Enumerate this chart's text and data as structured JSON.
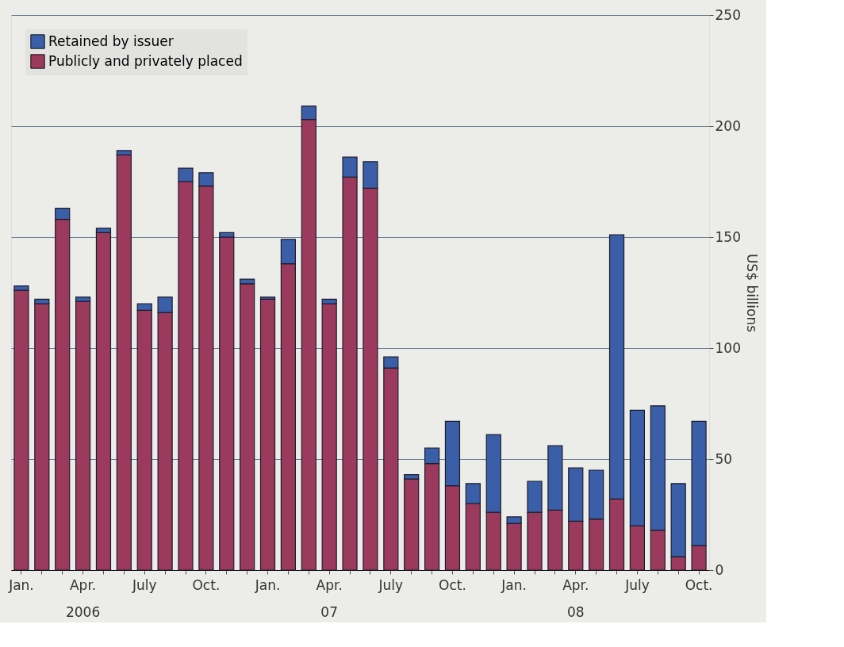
{
  "chart_data": {
    "type": "bar",
    "stacked": true,
    "ylabel": "US$ billions",
    "categories": [
      "Jan.",
      null,
      null,
      "Apr.\n2006",
      null,
      null,
      "July",
      null,
      null,
      "Oct.",
      null,
      null,
      "Jan.",
      null,
      null,
      "Apr.\n07",
      null,
      null,
      "July",
      null,
      null,
      "Oct.",
      null,
      null,
      "Jan.",
      null,
      null,
      "Apr.\n08",
      null,
      null,
      "July",
      null,
      null,
      "Oct."
    ],
    "series": [
      {
        "name": "Publicly and privately placed",
        "color": "#9b3a5c",
        "values": [
          126,
          120,
          158,
          121,
          152,
          187,
          117,
          116,
          175,
          173,
          150,
          129,
          122,
          138,
          203,
          120,
          177,
          172,
          91,
          41,
          48,
          38,
          30,
          26,
          21,
          26,
          27,
          22,
          23,
          32,
          20,
          18,
          6,
          11
        ]
      },
      {
        "name": "Retained by issuer",
        "color": "#3a5ea8",
        "values": [
          2,
          2,
          5,
          2,
          2,
          2,
          3,
          7,
          6,
          6,
          2,
          2,
          1,
          11,
          6,
          2,
          9,
          12,
          5,
          2,
          7,
          29,
          9,
          35,
          3,
          14,
          29,
          24,
          22,
          119,
          52,
          56,
          33,
          56
        ]
      }
    ],
    "ylim": [
      0,
      250
    ],
    "yticks": [
      0,
      50,
      100,
      150,
      200,
      250
    ],
    "grid": "y",
    "legend": "top left"
  }
}
